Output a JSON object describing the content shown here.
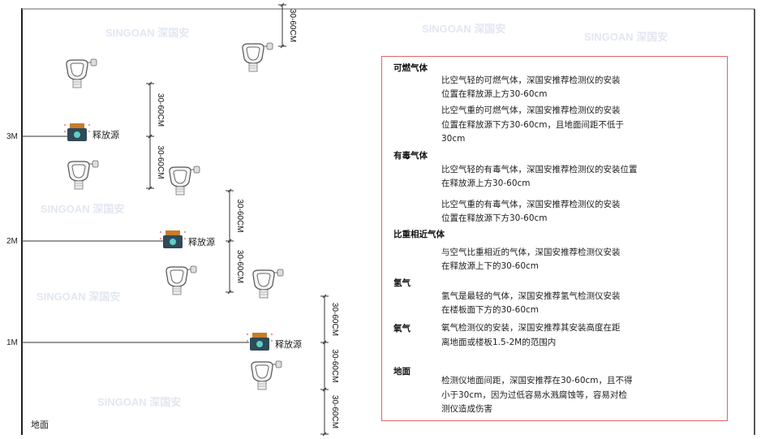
{
  "floors": [
    {
      "label": "3M"
    },
    {
      "label": "2M"
    },
    {
      "label": "1M"
    }
  ],
  "ground_label": "地面",
  "source_label": "释放源",
  "dimension_label": "30-60CM",
  "watermark": "SINGOAN 深国安",
  "colors": {
    "box_border": "#e06666",
    "source_body": "#2f4a5a",
    "source_cap": "#c97c2a",
    "line": "#333333"
  },
  "info": {
    "sections": [
      {
        "title": "可燃气体",
        "paragraphs": [
          [
            "比空气轻的可燃气体，深国安推荐检测仪的安装",
            "位置在释放源上方30-60cm"
          ],
          [
            "比空气重的可燃气体，深国安推荐检测仪的安装",
            "位置在释放源下方30-60cm，且地面间距不低于",
            "30cm"
          ]
        ]
      },
      {
        "title": "有毒气体",
        "paragraphs": [
          [
            "比空气轻的有毒气体，深国安推荐检测仪的安装位置",
            "在释放源上方30-60cm"
          ],
          [
            "比空气重的有毒气体，深国安推荐检测仪的安装",
            "位置在释放源下方30-60cm"
          ]
        ]
      },
      {
        "title": "比重相近气体",
        "paragraphs": [
          [
            "与空气比重相近的气体，深国安推荐检测仪安装",
            "在释放源上下的30-60cm"
          ]
        ]
      },
      {
        "title": "氢气",
        "paragraphs": [
          [
            "氢气是最轻的气体，深国安推荐氢气检测仪安装",
            "在楼板面下方的30-60cm"
          ]
        ]
      },
      {
        "title": "氧气",
        "paragraphs": [
          [
            "氧气检测仪的安装，深国安推荐其安装高度在距",
            "离地面或楼板1.5-2M的范围内"
          ]
        ]
      },
      {
        "title": "地面",
        "paragraphs": [
          [
            "检测仪地面间距，深国安推荐在30-60cm，且不得",
            "小于30cm，因为过低容易水溅腐蚀等，容易对检",
            "测仪造成伤害"
          ]
        ]
      }
    ]
  }
}
